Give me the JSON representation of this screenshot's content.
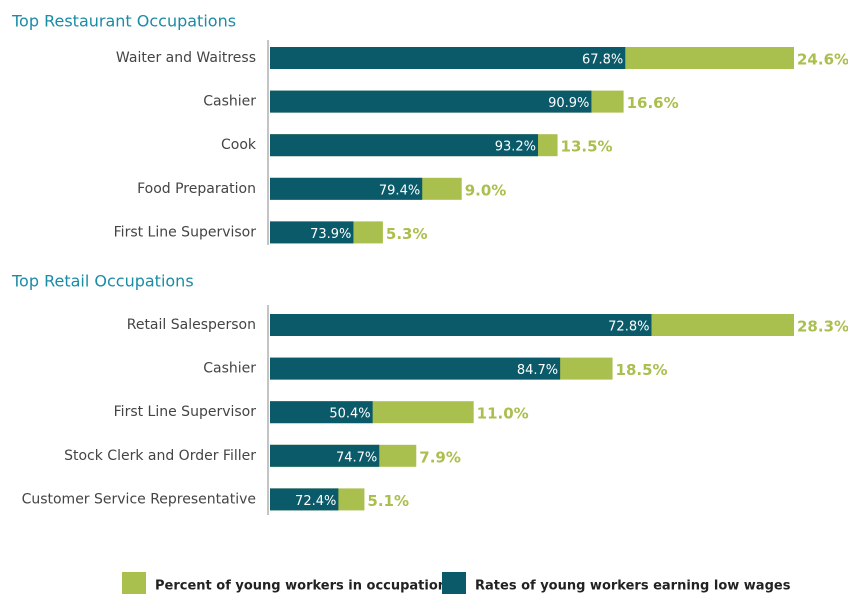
{
  "chart_data": [
    {
      "type": "bar",
      "orientation": "horizontal",
      "title": "Top Restaurant Occupations",
      "categories": [
        "Waiter and Waitress",
        "Cashier",
        "Cook",
        "Food Preparation",
        "First Line Supervisor"
      ],
      "series": [
        {
          "name": "Percent of young workers in occupation",
          "color": "#a9bf4e",
          "values": [
            24.6,
            16.6,
            13.5,
            9.0,
            5.3
          ],
          "value_labels": [
            "24.6%",
            "16.6%",
            "13.5%",
            "9.0%",
            "5.3%"
          ]
        },
        {
          "name": "Rates of young workers earning low wages",
          "color": "#0b5a69",
          "values": [
            67.8,
            90.9,
            93.2,
            79.4,
            73.9
          ],
          "value_labels": [
            "67.8%",
            "90.9%",
            "93.2%",
            "79.4%",
            "73.9%"
          ]
        }
      ]
    },
    {
      "type": "bar",
      "orientation": "horizontal",
      "title": "Top Retail Occupations",
      "categories": [
        "Retail Salesperson",
        "Cashier",
        "First Line Supervisor",
        "Stock Clerk and Order Filler",
        "Customer Service Representative"
      ],
      "series": [
        {
          "name": "Percent of young workers in occupation",
          "color": "#a9bf4e",
          "values": [
            28.3,
            18.5,
            11.0,
            7.9,
            5.1
          ],
          "value_labels": [
            "28.3%",
            "18.5%",
            "11.0%",
            "7.9%",
            "5.1%"
          ]
        },
        {
          "name": "Rates of young workers earning low wages",
          "color": "#0b5a69",
          "values": [
            72.8,
            84.7,
            50.4,
            74.7,
            72.4
          ],
          "value_labels": [
            "72.8%",
            "84.7%",
            "50.4%",
            "74.7%",
            "72.4%"
          ]
        }
      ]
    }
  ]
}
